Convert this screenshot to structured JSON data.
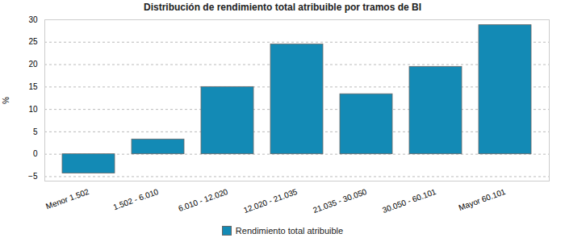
{
  "chart_data": {
    "type": "bar",
    "title": "Distribución de rendimiento total atribuible por tramos de BI",
    "y_label": "%",
    "categories": [
      "Menor 1.502",
      "1.502 - 6.010",
      "6.010 - 12.020",
      "12.020 - 21.035",
      "21.035 - 30.050",
      "30.050 - 60.101",
      "Mayor 60.101"
    ],
    "series": [
      {
        "name": "Rendimiento total atribuible",
        "color": "#138ab5",
        "values": [
          -4.3,
          3.3,
          15.0,
          24.5,
          13.4,
          19.5,
          28.8
        ]
      }
    ],
    "ylim": [
      -6,
      30
    ],
    "yticks": [
      -5,
      0,
      5,
      10,
      15,
      20,
      25,
      30
    ],
    "grid": true,
    "legend": "bottom"
  }
}
